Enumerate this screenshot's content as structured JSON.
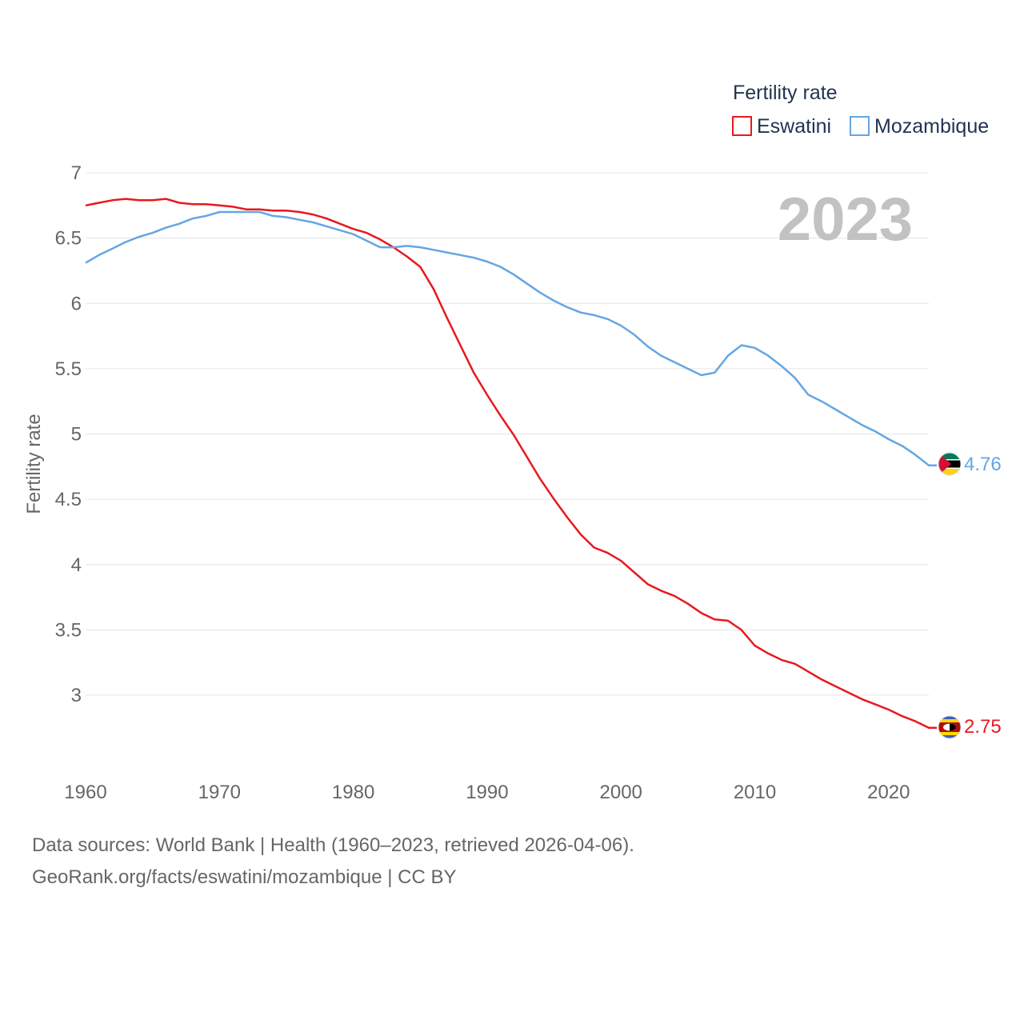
{
  "chart_data": {
    "type": "line",
    "title": "Fertility rate",
    "xlabel": "",
    "ylabel": "Fertility rate",
    "xlim": [
      1960,
      2023
    ],
    "ylim": [
      2.5,
      7
    ],
    "x_ticks": [
      "1960",
      "1970",
      "1980",
      "1990",
      "2000",
      "2010",
      "2020"
    ],
    "x_tick_values": [
      1960,
      1970,
      1980,
      1990,
      2000,
      2010,
      2020
    ],
    "y_ticks": [
      "3",
      "3.5",
      "4",
      "4.5",
      "5",
      "5.5",
      "6",
      "6.5",
      "7"
    ],
    "y_tick_values": [
      3,
      3.5,
      4,
      4.5,
      5,
      5.5,
      6,
      6.5,
      7
    ],
    "year_label": "2023",
    "legend_position": "top-right",
    "x": [
      1960,
      1961,
      1962,
      1963,
      1964,
      1965,
      1966,
      1967,
      1968,
      1969,
      1970,
      1971,
      1972,
      1973,
      1974,
      1975,
      1976,
      1977,
      1978,
      1979,
      1980,
      1981,
      1982,
      1983,
      1984,
      1985,
      1986,
      1987,
      1988,
      1989,
      1990,
      1991,
      1992,
      1993,
      1994,
      1995,
      1996,
      1997,
      1998,
      1999,
      2000,
      2001,
      2002,
      2003,
      2004,
      2005,
      2006,
      2007,
      2008,
      2009,
      2010,
      2011,
      2012,
      2013,
      2014,
      2015,
      2016,
      2017,
      2018,
      2019,
      2020,
      2021,
      2022,
      2023
    ],
    "series": [
      {
        "name": "Eswatini",
        "color": "#e8191e",
        "end_label": "2.75",
        "values": [
          6.75,
          6.77,
          6.79,
          6.8,
          6.79,
          6.79,
          6.8,
          6.77,
          6.76,
          6.76,
          6.75,
          6.74,
          6.72,
          6.72,
          6.71,
          6.71,
          6.7,
          6.68,
          6.65,
          6.61,
          6.57,
          6.54,
          6.49,
          6.43,
          6.36,
          6.28,
          6.11,
          5.89,
          5.68,
          5.47,
          5.3,
          5.14,
          4.99,
          4.82,
          4.65,
          4.5,
          4.36,
          4.23,
          4.13,
          4.09,
          4.03,
          3.94,
          3.85,
          3.8,
          3.76,
          3.7,
          3.63,
          3.58,
          3.57,
          3.5,
          3.38,
          3.32,
          3.27,
          3.24,
          3.18,
          3.12,
          3.07,
          3.02,
          2.97,
          2.93,
          2.89,
          2.84,
          2.8,
          2.75
        ]
      },
      {
        "name": "Mozambique",
        "color": "#64a6e3",
        "end_label": "4.76",
        "values": [
          6.31,
          6.37,
          6.42,
          6.47,
          6.51,
          6.54,
          6.58,
          6.61,
          6.65,
          6.67,
          6.7,
          6.7,
          6.7,
          6.7,
          6.67,
          6.66,
          6.64,
          6.62,
          6.59,
          6.56,
          6.53,
          6.48,
          6.43,
          6.43,
          6.44,
          6.43,
          6.41,
          6.39,
          6.37,
          6.35,
          6.32,
          6.28,
          6.22,
          6.15,
          6.08,
          6.02,
          5.97,
          5.93,
          5.91,
          5.88,
          5.83,
          5.76,
          5.67,
          5.6,
          5.55,
          5.5,
          5.45,
          5.47,
          5.6,
          5.68,
          5.66,
          5.6,
          5.52,
          5.43,
          5.3,
          5.25,
          5.19,
          5.13,
          5.07,
          5.02,
          4.96,
          4.91,
          4.84,
          4.76
        ]
      }
    ],
    "footer_line1": "Data sources: World Bank | Health (1960–2023, retrieved 2026-04-06).",
    "footer_line2": "GeoRank.org/facts/eswatini/mozambique | CC BY"
  }
}
